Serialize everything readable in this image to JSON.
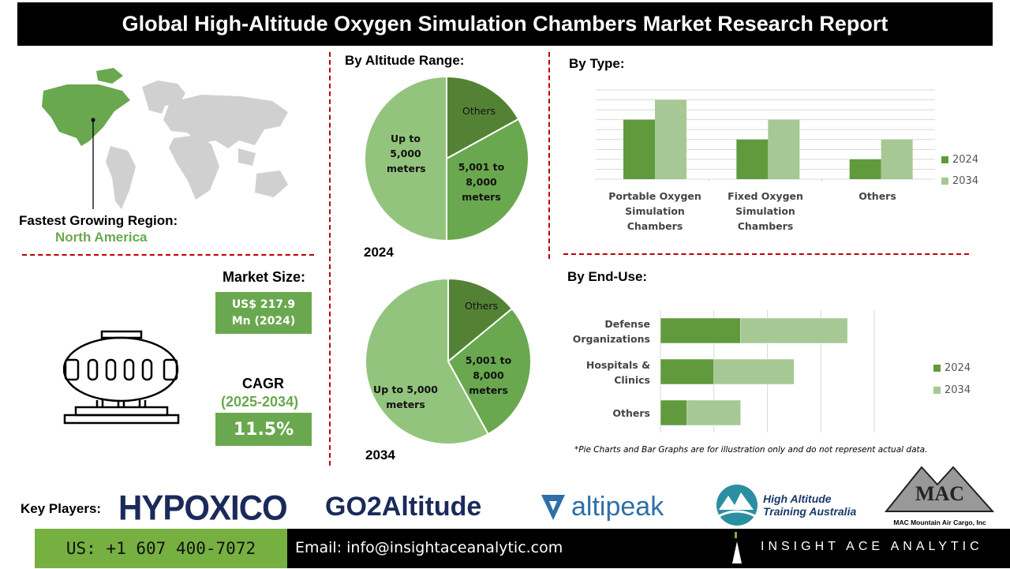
{
  "title": "Global High-Altitude Oxygen Simulation Chambers Market Research Report",
  "region": {
    "label": "Fastest Growing Region:",
    "value": "North America"
  },
  "market_size": {
    "label": "Market Size:",
    "value_line1": "US$ 217.9",
    "value_line2": "Mn (2024)"
  },
  "cagr": {
    "label": "CAGR",
    "period": "(2025-2034)",
    "value": "11.5%"
  },
  "icons": {
    "map": "world-map-icon",
    "chamber": "oxygen-chamber-icon"
  },
  "colors": {
    "accent": "#6aa84f",
    "dark_green": "#5f9a3c",
    "light_green": "#a6c894",
    "divider": "#c00000"
  },
  "chart_data": [
    {
      "type": "pie",
      "title": "By Altitude Range:",
      "caption": "2024",
      "slices": [
        {
          "label": "Others",
          "value": 17,
          "color": "#548235"
        },
        {
          "label": "5,001 to 8,000 meters",
          "value": 33,
          "color": "#6aa84f"
        },
        {
          "label": "Up to 5,000 meters",
          "value": 50,
          "color": "#93c47d"
        }
      ]
    },
    {
      "type": "pie",
      "caption": "2034",
      "slices": [
        {
          "label": "Others",
          "value": 14,
          "color": "#548235"
        },
        {
          "label": "5,001 to 8,000 meters",
          "value": 28,
          "color": "#6aa84f"
        },
        {
          "label": "Up to 5,000 meters",
          "value": 58,
          "color": "#93c47d"
        }
      ]
    },
    {
      "type": "bar",
      "title": "By Type:",
      "categories": [
        "Portable Oxygen Simulation Chambers",
        "Fixed Oxygen Simulation Chambers",
        "Others"
      ],
      "series": [
        {
          "name": "2024",
          "values": [
            6,
            4,
            2
          ],
          "color": "#619a3d"
        },
        {
          "name": "2034",
          "values": [
            8,
            6,
            4
          ],
          "color": "#a6c894"
        }
      ],
      "ylim": [
        0,
        9
      ],
      "grid": true,
      "legend": "right"
    },
    {
      "type": "bar",
      "orientation": "horizontal-stacked",
      "title": "By End-Use:",
      "categories": [
        "Defense Organizations",
        "Hospitals & Clinics",
        "Others"
      ],
      "series": [
        {
          "name": "2024",
          "values": [
            1.5,
            1.0,
            0.5
          ],
          "color": "#619a3d"
        },
        {
          "name": "2034",
          "values": [
            2.0,
            1.5,
            1.0
          ],
          "color": "#a6c894"
        }
      ],
      "xlim": [
        0,
        4
      ],
      "grid": true,
      "legend": "right"
    }
  ],
  "note": "*Pie Charts and Bar Graphs are for illustration only and do not represent actual data.",
  "key_players": {
    "label": "Key Players:",
    "logos": [
      "HYPOXICO",
      "GO2Altitude",
      "altipeak",
      "High Altitude Training Australia",
      "MAC Mountain Air Cargo, Inc"
    ]
  },
  "footer": {
    "phone": "US: +1 607 400-7072",
    "email": "Email: info@insightaceanalytic.com",
    "brand": "INSIGHT ACE ANALYTIC"
  }
}
